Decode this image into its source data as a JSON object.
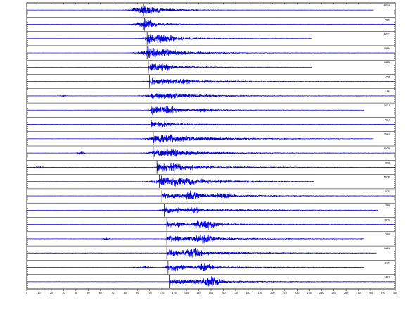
{
  "chart_data": {
    "type": "line",
    "title": "",
    "xlabel": "",
    "ylabel": "",
    "xlim": [
      0,
      300
    ],
    "x_tick_step": 10,
    "grid": false,
    "legend": "none",
    "trace_color": "#0000dd",
    "traces": [
      {
        "station": "",
        "label": "PDW",
        "pick": 95,
        "end": 282,
        "amp": 0.95,
        "decay": 16,
        "pre": 0.02,
        "bursts": [
          [
            97,
            1.0,
            10
          ]
        ]
      },
      {
        "station": "",
        "label": "PDE",
        "pick": 96,
        "end": 300,
        "amp": 0.55,
        "decay": 14,
        "pre": 0.02,
        "bursts": [
          [
            98,
            1.0,
            8
          ]
        ]
      },
      {
        "station": "",
        "label": "DOC",
        "pick": 98,
        "end": 232,
        "amp": 1.0,
        "decay": 22,
        "pre": 0.01,
        "bursts": [
          [
            110,
            0.9,
            12
          ]
        ]
      },
      {
        "station": "",
        "label": "DRA",
        "pick": 98,
        "end": 300,
        "amp": 1.0,
        "decay": 26,
        "pre": 0.01,
        "bursts": [
          [
            108,
            0.9,
            14
          ]
        ]
      },
      {
        "station": "",
        "label": "DRB",
        "pick": 99,
        "end": 232,
        "amp": 0.8,
        "decay": 22,
        "pre": 0.02,
        "bursts": [
          [
            112,
            0.8,
            8
          ]
        ]
      },
      {
        "station": "",
        "label": "LPD",
        "pick": 100,
        "end": 300,
        "amp": 0.6,
        "decay": 40,
        "pre": 0.02,
        "bursts": [
          [
            124,
            0.5,
            20
          ]
        ]
      },
      {
        "station": "",
        "label": "LPE",
        "pick": 101,
        "end": 300,
        "amp": 0.55,
        "decay": 40,
        "pre": 0.02,
        "bursts": [
          [
            120,
            0.5,
            20
          ],
          [
            30,
            0.15,
            3
          ]
        ]
      },
      {
        "station": "",
        "label": "PGU",
        "pick": 101,
        "end": 275,
        "amp": 0.8,
        "decay": 26,
        "pre": 0.02,
        "bursts": [
          [
            115,
            0.8,
            10
          ],
          [
            144,
            0.4,
            10
          ]
        ]
      },
      {
        "station": "",
        "label": "PSU",
        "pick": 101,
        "end": 300,
        "amp": 0.6,
        "decay": 20,
        "pre": 0.03,
        "bursts": [
          [
            112,
            0.5,
            8
          ]
        ]
      },
      {
        "station": "",
        "label": "PHG",
        "pick": 103,
        "end": 282,
        "amp": 0.9,
        "decay": 38,
        "pre": 0.02,
        "bursts": [
          [
            115,
            0.8,
            14
          ]
        ]
      },
      {
        "station": "",
        "label": "PKW",
        "pick": 103,
        "end": 300,
        "amp": 0.65,
        "decay": 38,
        "pre": 0.02,
        "bursts": [
          [
            115,
            0.8,
            12
          ],
          [
            44,
            0.25,
            3
          ]
        ]
      },
      {
        "station": "",
        "label": "DNJ",
        "pick": 106,
        "end": 300,
        "amp": 0.75,
        "decay": 40,
        "pre": 0.04,
        "bursts": [
          [
            120,
            0.9,
            10
          ],
          [
            10,
            0.2,
            4
          ]
        ]
      },
      {
        "station": "",
        "label": "MOP",
        "pick": 108,
        "end": 234,
        "amp": 0.95,
        "decay": 40,
        "pre": 0.02,
        "bursts": [
          [
            125,
            0.9,
            18
          ]
        ]
      },
      {
        "station": "",
        "label": "BCS",
        "pick": 110,
        "end": 300,
        "amp": 0.55,
        "decay": 45,
        "pre": 0.02,
        "bursts": [
          [
            135,
            0.9,
            10
          ],
          [
            160,
            0.5,
            12
          ]
        ]
      },
      {
        "station": "",
        "label": "SBR",
        "pick": 112,
        "end": 286,
        "amp": 0.5,
        "decay": 45,
        "pre": 0.02,
        "bursts": [
          [
            115,
            0.7,
            5
          ],
          [
            138,
            0.6,
            8
          ]
        ]
      },
      {
        "station": "",
        "label": "RDS",
        "pick": 114,
        "end": 300,
        "amp": 0.55,
        "decay": 40,
        "pre": 0.02,
        "bursts": [
          [
            145,
            1.0,
            10
          ]
        ]
      },
      {
        "station": "",
        "label": "KRB",
        "pick": 114,
        "end": 275,
        "amp": 0.6,
        "decay": 40,
        "pre": 0.03,
        "bursts": [
          [
            145,
            0.9,
            10
          ],
          [
            65,
            0.25,
            3
          ]
        ]
      },
      {
        "station": "",
        "label": "OHN",
        "pick": 114,
        "end": 285,
        "amp": 0.65,
        "decay": 42,
        "pre": 0.04,
        "bursts": [
          [
            135,
            1.0,
            10
          ]
        ]
      },
      {
        "station": "",
        "label": "SSK",
        "pick": 115,
        "end": 275,
        "amp": 0.55,
        "decay": 38,
        "pre": 0.02,
        "bursts": [
          [
            120,
            0.7,
            6
          ],
          [
            145,
            0.8,
            8
          ],
          [
            95,
            0.2,
            8
          ]
        ]
      },
      {
        "station": "",
        "label": "SBO",
        "pick": 116,
        "end": 300,
        "amp": 0.55,
        "decay": 40,
        "pre": 0.02,
        "bursts": [
          [
            150,
            1.0,
            10
          ]
        ]
      }
    ]
  }
}
